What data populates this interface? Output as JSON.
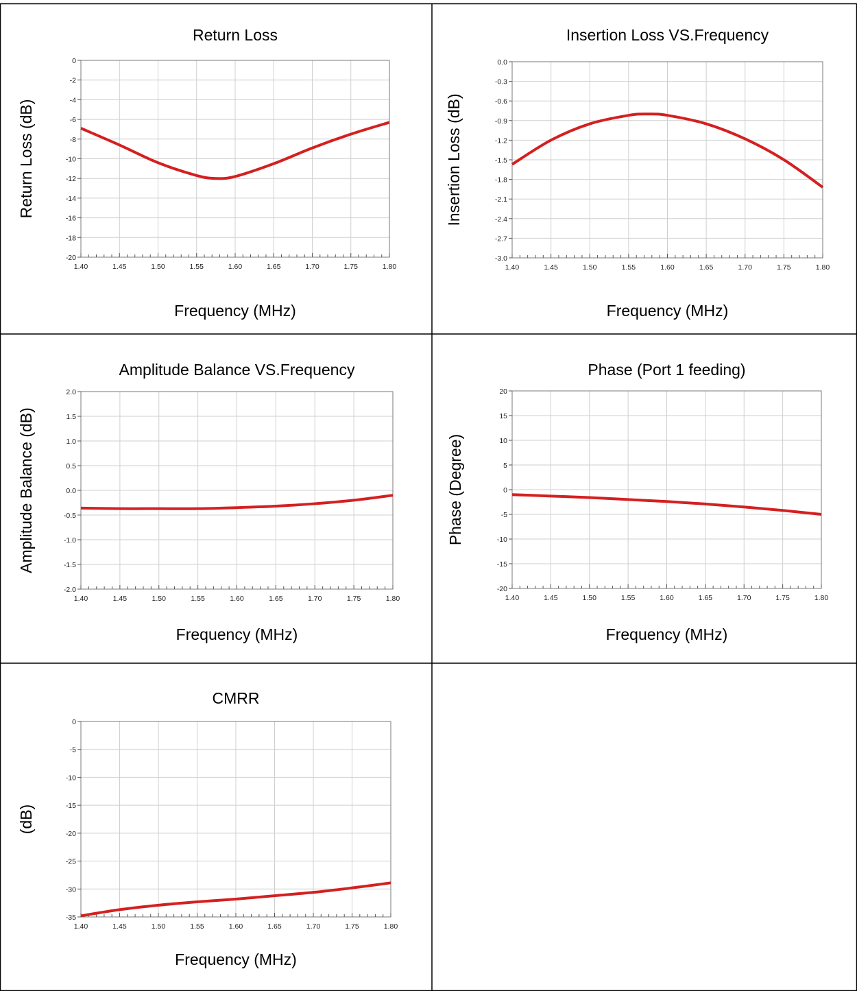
{
  "chart_data": [
    {
      "type": "line",
      "title": "Return Loss",
      "xlabel": "Frequency (MHz)",
      "ylabel": "Return Loss (dB)",
      "xlim": [
        1.4,
        1.8
      ],
      "ylim": [
        -20,
        0
      ],
      "xticks": [
        "1.40",
        "1.45",
        "1.50",
        "1.55",
        "1.60",
        "1.65",
        "1.70",
        "1.75",
        "1.80"
      ],
      "yticks": [
        "0",
        "-2",
        "-4",
        "-6",
        "-8",
        "-10",
        "-12",
        "-14",
        "-16",
        "-18",
        "-20"
      ],
      "grid": true,
      "line_color": "#d42020",
      "x": [
        1.4,
        1.45,
        1.5,
        1.55,
        1.575,
        1.6,
        1.65,
        1.7,
        1.75,
        1.8
      ],
      "y": [
        -6.9,
        -8.6,
        -10.4,
        -11.7,
        -12.0,
        -11.8,
        -10.5,
        -8.9,
        -7.5,
        -6.3
      ]
    },
    {
      "type": "line",
      "title": "Insertion Loss VS.Frequency",
      "xlabel": "Frequency (MHz)",
      "ylabel": "Insertion Loss (dB)",
      "xlim": [
        1.4,
        1.8
      ],
      "ylim": [
        -3.0,
        0.0
      ],
      "xticks": [
        "1.40",
        "1.45",
        "1.50",
        "1.55",
        "1.60",
        "1.65",
        "1.70",
        "1.75",
        "1.80"
      ],
      "yticks": [
        "0.0",
        "-0.3",
        "-0.6",
        "-0.9",
        "-1.2",
        "-1.5",
        "-1.8",
        "-2.1",
        "-2.4",
        "-2.7",
        "-3.0"
      ],
      "grid": true,
      "line_color": "#d42020",
      "x": [
        1.4,
        1.45,
        1.5,
        1.55,
        1.575,
        1.6,
        1.65,
        1.7,
        1.75,
        1.8
      ],
      "y": [
        -1.57,
        -1.2,
        -0.95,
        -0.82,
        -0.8,
        -0.82,
        -0.95,
        -1.18,
        -1.5,
        -1.92
      ]
    },
    {
      "type": "line",
      "title": "Amplitude Balance VS.Frequency",
      "xlabel": "Frequency (MHz)",
      "ylabel": "Amplitude Balance (dB)",
      "xlim": [
        1.4,
        1.8
      ],
      "ylim": [
        -2.0,
        2.0
      ],
      "xticks": [
        "1.40",
        "1.45",
        "1.50",
        "1.55",
        "1.60",
        "1.65",
        "1.70",
        "1.75",
        "1.80"
      ],
      "yticks": [
        "2.0",
        "1.5",
        "1.0",
        "0.5",
        "0.0",
        "-0.5",
        "-1.0",
        "-1.5",
        "-2.0"
      ],
      "grid": true,
      "line_color": "#d42020",
      "x": [
        1.4,
        1.45,
        1.5,
        1.55,
        1.6,
        1.65,
        1.7,
        1.75,
        1.8
      ],
      "y": [
        -0.36,
        -0.37,
        -0.37,
        -0.37,
        -0.35,
        -0.32,
        -0.27,
        -0.2,
        -0.1
      ]
    },
    {
      "type": "line",
      "title": "Phase (Port 1 feeding)",
      "xlabel": "Frequency (MHz)",
      "ylabel": "Phase (Degree)",
      "xlim": [
        1.4,
        1.8
      ],
      "ylim": [
        -20,
        20
      ],
      "xticks": [
        "1.40",
        "1.45",
        "1.50",
        "1.55",
        "1.60",
        "1.65",
        "1.70",
        "1.75",
        "1.80"
      ],
      "yticks": [
        "20",
        "15",
        "10",
        "5",
        "0",
        "-5",
        "-10",
        "-15",
        "-20"
      ],
      "grid": true,
      "line_color": "#d42020",
      "x": [
        1.4,
        1.45,
        1.5,
        1.55,
        1.6,
        1.65,
        1.7,
        1.75,
        1.8
      ],
      "y": [
        -1.0,
        -1.3,
        -1.6,
        -2.0,
        -2.4,
        -2.9,
        -3.5,
        -4.2,
        -5.0
      ]
    },
    {
      "type": "line",
      "title": "CMRR",
      "xlabel": "Frequency (MHz)",
      "ylabel": "(dB)",
      "xlim": [
        1.4,
        1.8
      ],
      "ylim": [
        -35,
        0
      ],
      "xticks": [
        "1.40",
        "1.45",
        "1.50",
        "1.55",
        "1.60",
        "1.65",
        "1.70",
        "1.75",
        "1.80"
      ],
      "yticks": [
        "0",
        "-5",
        "-10",
        "-15",
        "-20",
        "-25",
        "-30",
        "-35"
      ],
      "grid": true,
      "line_color": "#d42020",
      "x": [
        1.4,
        1.45,
        1.5,
        1.55,
        1.6,
        1.65,
        1.7,
        1.75,
        1.8
      ],
      "y": [
        -34.8,
        -33.7,
        -32.9,
        -32.3,
        -31.8,
        -31.2,
        -30.6,
        -29.8,
        -28.9
      ]
    }
  ]
}
